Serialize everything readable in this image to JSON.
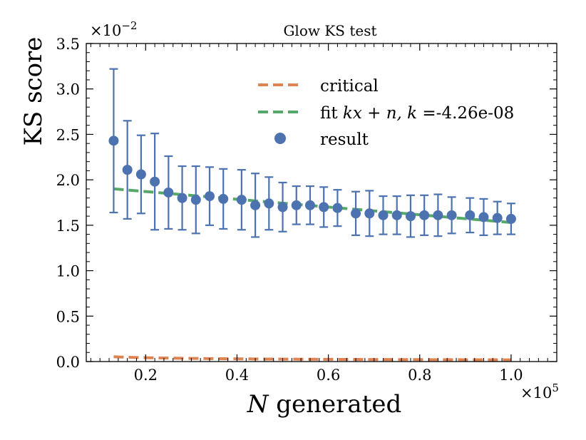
{
  "chart_data": {
    "type": "scatter",
    "title": "Glow KS test",
    "xlabel_italic": "N",
    "xlabel_rest": " generated",
    "ylabel": "KS score",
    "x_multiplier": "×10",
    "x_multiplier_exp": "5",
    "y_multiplier": "×10",
    "y_multiplier_exp": "−2",
    "xlim": [
      0.07,
      1.1
    ],
    "ylim": [
      0.0,
      3.5
    ],
    "x_ticks": [
      0.2,
      0.4,
      0.6,
      0.8,
      1.0
    ],
    "x_tick_labels": [
      "0.2",
      "0.4",
      "0.6",
      "0.8",
      "1.0"
    ],
    "y_ticks": [
      0.0,
      0.5,
      1.0,
      1.5,
      2.0,
      2.5,
      3.0,
      3.5
    ],
    "y_tick_labels": [
      "0.0",
      "0.5",
      "1.0",
      "1.5",
      "2.0",
      "2.5",
      "3.0",
      "3.5"
    ],
    "legend": {
      "position": "upper-right",
      "entries": [
        {
          "label": "critical",
          "kind": "dashed-line",
          "color": "#dd8452"
        },
        {
          "label_prefix": "fit ",
          "label_math": "kx + n, k",
          "label_suffix": " =-4.26e-08",
          "kind": "dashed-line",
          "color": "#55a868"
        },
        {
          "label": "result",
          "kind": "marker",
          "color": "#4c72b0"
        }
      ]
    },
    "colors": {
      "result": "#4c72b0",
      "critical": "#dd8452",
      "fit": "#55a868"
    },
    "series": [
      {
        "name": "result",
        "x": [
          0.13,
          0.16,
          0.19,
          0.22,
          0.25,
          0.28,
          0.31,
          0.34,
          0.37,
          0.41,
          0.44,
          0.47,
          0.5,
          0.53,
          0.56,
          0.59,
          0.62,
          0.66,
          0.69,
          0.72,
          0.75,
          0.78,
          0.81,
          0.84,
          0.87,
          0.91,
          0.94,
          0.97,
          1.0
        ],
        "y": [
          2.43,
          2.11,
          2.06,
          1.98,
          1.86,
          1.8,
          1.78,
          1.82,
          1.79,
          1.78,
          1.72,
          1.74,
          1.7,
          1.72,
          1.72,
          1.7,
          1.69,
          1.63,
          1.63,
          1.61,
          1.61,
          1.6,
          1.61,
          1.61,
          1.61,
          1.61,
          1.59,
          1.58,
          1.57
        ],
        "err": [
          0.79,
          0.54,
          0.43,
          0.53,
          0.4,
          0.35,
          0.37,
          0.32,
          0.33,
          0.33,
          0.35,
          0.29,
          0.27,
          0.21,
          0.21,
          0.22,
          0.2,
          0.24,
          0.25,
          0.21,
          0.21,
          0.23,
          0.22,
          0.23,
          0.2,
          0.19,
          0.2,
          0.18,
          0.17
        ]
      },
      {
        "name": "critical",
        "formula": "0.06 / sqrt(x * 1e5) * 100",
        "x_start": 0.13,
        "x_end": 1.0
      },
      {
        "name": "fit",
        "slope_per_1e5": -0.426,
        "intercept": 1.956,
        "x_start": 0.13,
        "x_end": 1.0
      }
    ]
  }
}
